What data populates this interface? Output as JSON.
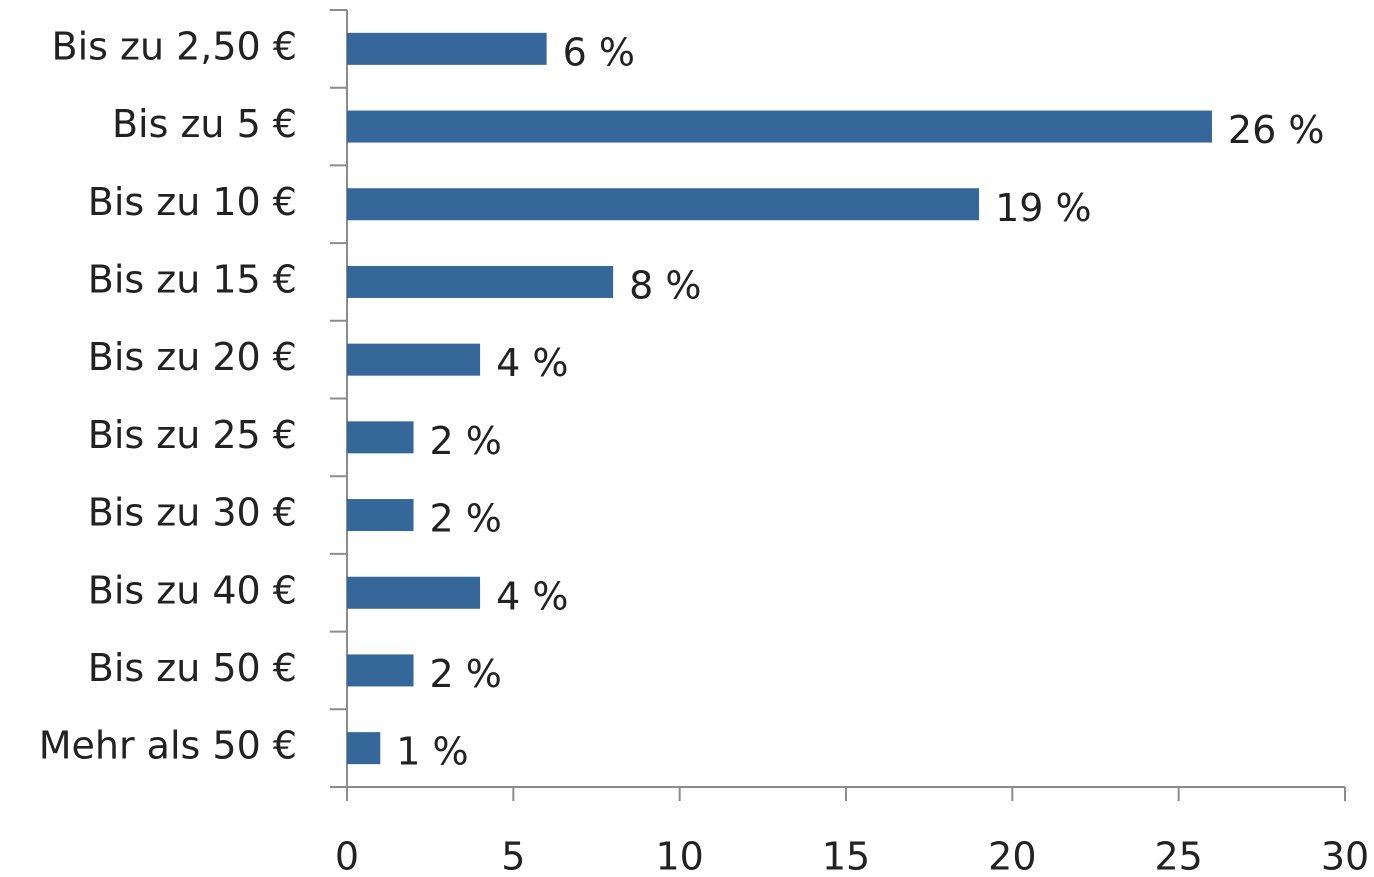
{
  "chart_data": {
    "type": "bar",
    "orientation": "horizontal",
    "categories": [
      "Bis zu 2,50 €",
      "Bis zu 5 €",
      "Bis zu 10 €",
      "Bis zu 15 €",
      "Bis zu 20 €",
      "Bis zu 25 €",
      "Bis zu 30 €",
      "Bis zu 40 €",
      "Bis zu 50 €",
      "Mehr als 50 €"
    ],
    "values": [
      6,
      26,
      19,
      8,
      4,
      2,
      2,
      4,
      2,
      1
    ],
    "value_labels": [
      "6 %",
      "26 %",
      "19 %",
      "8 %",
      "4 %",
      "2 %",
      "2 %",
      "4 %",
      "2 %",
      "1 %"
    ],
    "color": "#35679a",
    "xlim": [
      0,
      30
    ],
    "xticks": [
      0,
      5,
      10,
      15,
      20,
      25,
      30
    ],
    "grid": false
  }
}
